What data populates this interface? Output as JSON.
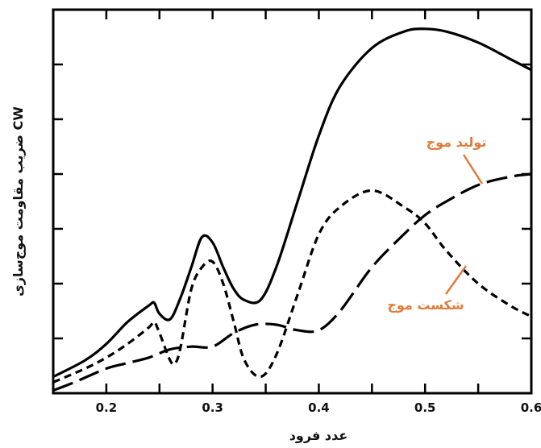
{
  "chart_data": {
    "type": "line",
    "xlabel": "عدد فرود",
    "ylabel": "ضریب مقاومت موج‌سازی CW",
    "xlim": [
      0.15,
      0.6
    ],
    "ylim": [
      0,
      7
    ],
    "x_ticks": [
      0.2,
      0.3,
      0.4,
      0.5,
      0.6
    ],
    "x_tick_labels": [
      "0.2",
      "0.3",
      "0.4",
      "0.5",
      "0.6"
    ],
    "y_tick_count": 7,
    "y_tick_labels_shown": false,
    "grid": false,
    "series": [
      {
        "style": "solid",
        "color": "#000000",
        "x": [
          0.15,
          0.18,
          0.2,
          0.22,
          0.24,
          0.245,
          0.25,
          0.26,
          0.27,
          0.28,
          0.29,
          0.3,
          0.31,
          0.32,
          0.33,
          0.345,
          0.36,
          0.38,
          0.4,
          0.42,
          0.45,
          0.48,
          0.5,
          0.52,
          0.55,
          0.58,
          0.6
        ],
        "y": [
          0.3,
          0.6,
          0.9,
          1.3,
          1.6,
          1.65,
          1.45,
          1.35,
          1.75,
          2.3,
          2.85,
          2.75,
          2.3,
          1.9,
          1.7,
          1.7,
          2.3,
          3.5,
          4.7,
          5.6,
          6.3,
          6.6,
          6.65,
          6.6,
          6.4,
          6.1,
          5.9
        ]
      },
      {
        "style": "short-dash",
        "color": "#000000",
        "x": [
          0.15,
          0.18,
          0.2,
          0.22,
          0.24,
          0.245,
          0.25,
          0.26,
          0.265,
          0.27,
          0.28,
          0.29,
          0.3,
          0.31,
          0.32,
          0.33,
          0.345,
          0.36,
          0.38,
          0.4,
          0.42,
          0.45,
          0.48,
          0.5,
          0.52,
          0.55,
          0.58,
          0.6
        ],
        "y": [
          0.2,
          0.45,
          0.65,
          0.9,
          1.2,
          1.3,
          1.1,
          0.6,
          0.55,
          0.85,
          1.9,
          2.3,
          2.4,
          2.0,
          1.3,
          0.6,
          0.3,
          0.7,
          1.8,
          2.9,
          3.4,
          3.7,
          3.4,
          3.1,
          2.6,
          2.0,
          1.6,
          1.4
        ]
      },
      {
        "style": "long-dash",
        "color": "#000000",
        "x": [
          0.15,
          0.17,
          0.2,
          0.22,
          0.24,
          0.26,
          0.28,
          0.3,
          0.32,
          0.34,
          0.36,
          0.38,
          0.4,
          0.42,
          0.45,
          0.48,
          0.5,
          0.52,
          0.55,
          0.58,
          0.6
        ],
        "y": [
          0.05,
          0.2,
          0.45,
          0.55,
          0.65,
          0.8,
          0.85,
          0.85,
          1.1,
          1.25,
          1.25,
          1.15,
          1.15,
          1.5,
          2.3,
          2.9,
          3.25,
          3.5,
          3.8,
          3.95,
          4.0
        ]
      }
    ],
    "annotations": [
      {
        "text": "تولید موج",
        "color": "#e07b39"
      },
      {
        "text": "شکست موج",
        "color": "#e07b39"
      }
    ]
  }
}
